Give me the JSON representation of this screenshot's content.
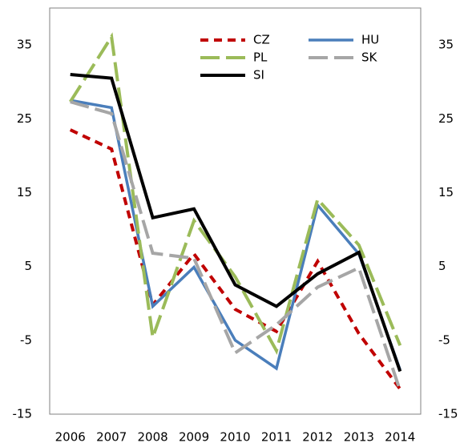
{
  "chart_data": {
    "type": "line",
    "categories": [
      "2006",
      "2007",
      "2008",
      "2009",
      "2010",
      "2011",
      "2012",
      "2013",
      "2014"
    ],
    "series": [
      {
        "name": "CZ",
        "color": "#c00000",
        "dash": "10,7",
        "width": 4,
        "values": [
          23.5,
          20.9,
          -0.2,
          6.7,
          -0.8,
          -3.8,
          5.7,
          -4.1,
          -11.6
        ]
      },
      {
        "name": "HU",
        "color": "#4a7ebb",
        "dash": "none",
        "width": 3.5,
        "values": [
          27.5,
          26.5,
          -0.4,
          4.9,
          -5,
          -8.8,
          13.3,
          6.7,
          -9
        ]
      },
      {
        "name": "PL",
        "color": "#9bbb59",
        "dash": "24,8",
        "width": 4,
        "values": [
          27.3,
          36.1,
          -4.6,
          11.2,
          3.6,
          -6.4,
          14.1,
          7.9,
          -5.7
        ]
      },
      {
        "name": "SK",
        "color": "#a6a6a6",
        "dash": "24,8",
        "width": 4,
        "values": [
          27.3,
          25.7,
          6.8,
          6.1,
          -6.7,
          -2.9,
          2.2,
          4.8,
          -11.8
        ]
      },
      {
        "name": "SI",
        "color": "#000000",
        "dash": "none",
        "width": 4,
        "values": [
          31,
          30.5,
          11.6,
          12.8,
          2.5,
          -0.4,
          4,
          6.9,
          -9.2
        ]
      }
    ],
    "ylim": [
      -15,
      40
    ],
    "yticks": [
      -15,
      -5,
      5,
      15,
      25,
      35
    ],
    "grid": false
  }
}
